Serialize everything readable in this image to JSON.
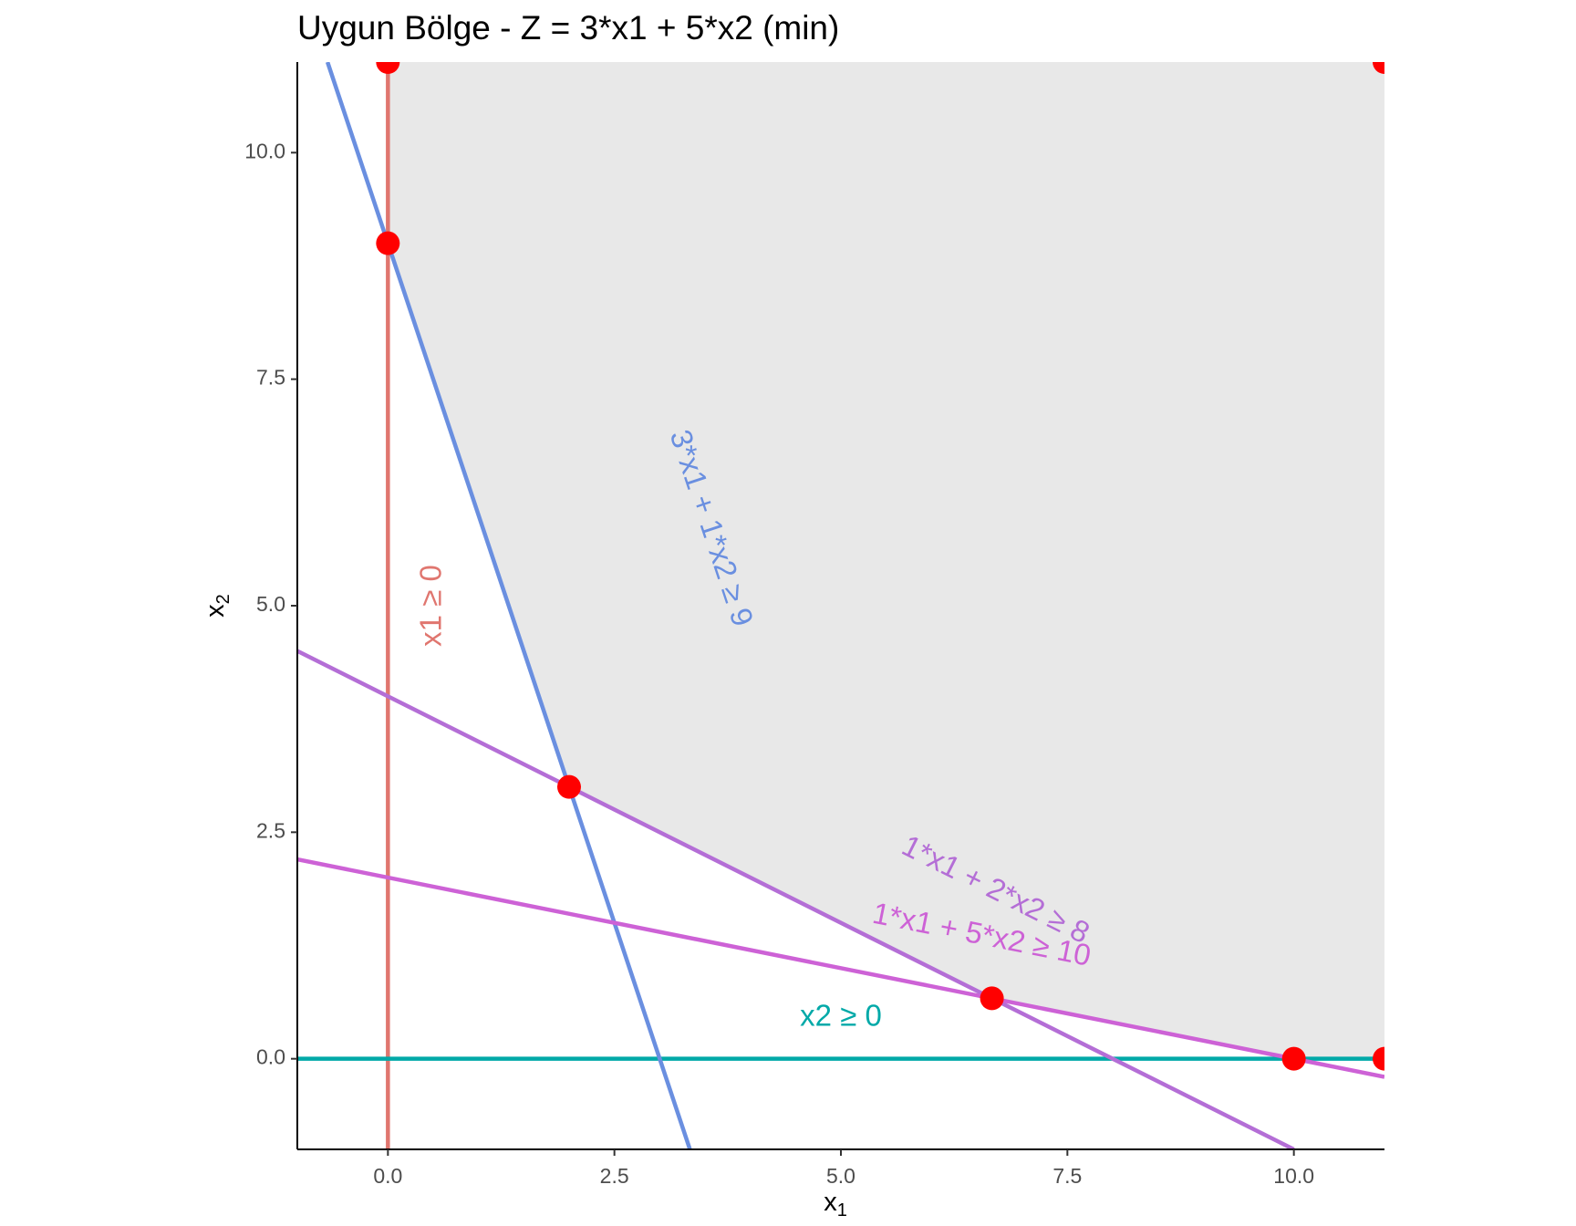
{
  "chart_data": {
    "type": "line",
    "title": "Uygun Bölge - Z = 3*x1 + 5*x2 (min)",
    "xlabel": "x",
    "xlabel_sub": "1",
    "ylabel": "x",
    "ylabel_sub": "2",
    "xlim": [
      -1,
      11
    ],
    "ylim": [
      -1,
      11
    ],
    "x_ticks": [
      {
        "value": 0,
        "label": "0.0"
      },
      {
        "value": 2.5,
        "label": "2.5"
      },
      {
        "value": 5,
        "label": "5.0"
      },
      {
        "value": 7.5,
        "label": "7.5"
      },
      {
        "value": 10,
        "label": "10.0"
      }
    ],
    "y_ticks": [
      {
        "value": 0,
        "label": "0.0"
      },
      {
        "value": 2.5,
        "label": "2.5"
      },
      {
        "value": 5,
        "label": "5.0"
      },
      {
        "value": 7.5,
        "label": "7.5"
      },
      {
        "value": 10,
        "label": "10.0"
      }
    ],
    "grid": false,
    "feasible_region": {
      "color": "#e8e8e8",
      "vertices": [
        [
          0,
          11
        ],
        [
          0,
          9
        ],
        [
          2,
          3
        ],
        [
          6.667,
          0.667
        ],
        [
          10,
          0
        ],
        [
          11,
          0
        ],
        [
          11,
          11
        ]
      ]
    },
    "constraints": [
      {
        "label": "x1 ≥ 0",
        "color": "#e0766f",
        "x1": 0,
        "y1": -1,
        "x2": 0,
        "y2": 11,
        "label_at": [
          0.5,
          5
        ]
      },
      {
        "label": "x2 ≥ 0",
        "color": "#00a9a8",
        "x1": -1,
        "y1": 0,
        "x2": 11,
        "y2": 0,
        "label_at": [
          5,
          0.45
        ]
      },
      {
        "label": "3*x1 + 1*x2 ≥ 9",
        "color": "#6a8fe0",
        "x1": -0.6667,
        "y1": 11,
        "x2": 3.3333,
        "y2": -1,
        "label_at": [
          3.55,
          5.85
        ]
      },
      {
        "label": "1*x1 + 2*x2 ≥ 8",
        "color": "#b46ed6",
        "x1": -1,
        "y1": 4.5,
        "x2": 10,
        "y2": -1,
        "label_at": [
          6.7,
          1.85
        ]
      },
      {
        "label": "1*x1 + 5*x2 ≥ 10",
        "color": "#cd62d6",
        "x1": -1,
        "y1": 2.2,
        "x2": 11,
        "y2": -0.2,
        "label_at": [
          6.55,
          1.35
        ]
      }
    ],
    "vertices": [
      {
        "x": 0,
        "y": 11
      },
      {
        "x": 0,
        "y": 9
      },
      {
        "x": 2,
        "y": 3
      },
      {
        "x": 6.667,
        "y": 0.667
      },
      {
        "x": 10,
        "y": 0
      },
      {
        "x": 11,
        "y": 0
      },
      {
        "x": 11,
        "y": 11
      }
    ],
    "vertex_color": "#ff0000"
  }
}
